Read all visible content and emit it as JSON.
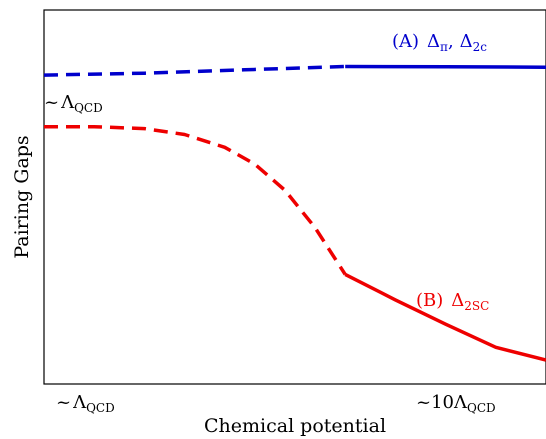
{
  "chart_data": {
    "type": "line",
    "title": "",
    "xlabel": "Chemical potential",
    "ylabel": "Pairing Gaps",
    "xlim": [
      0,
      1
    ],
    "ylim": [
      0,
      1
    ],
    "grid": false,
    "x_ticks": [
      {
        "x": 0.0,
        "prefix": "~",
        "main": "Λ",
        "sub": "QCD"
      },
      {
        "x": 1.0,
        "prefix": "~10",
        "main": "Λ",
        "sub": "QCD"
      }
    ],
    "y_annotation": {
      "y": 0.82,
      "prefix": "~",
      "main": "Λ",
      "sub": "QCD"
    },
    "series": [
      {
        "name_prefix": "(A)",
        "name_parts": [
          {
            "main": "Δ",
            "sub": "π"
          },
          {
            "main": "Δ",
            "sub": "2c"
          }
        ],
        "color": "#0000cc",
        "segments": [
          {
            "style": "dashed",
            "x": [
              0.0,
              0.2,
              0.4,
              0.6
            ],
            "y": [
              0.826,
              0.831,
              0.84,
              0.849
            ]
          },
          {
            "style": "solid",
            "x": [
              0.6,
              0.8,
              1.0
            ],
            "y": [
              0.849,
              0.848,
              0.847
            ]
          }
        ]
      },
      {
        "name_prefix": "(B)",
        "name_parts": [
          {
            "main": "Δ",
            "sub": "2SC"
          }
        ],
        "color": "#ee0000",
        "segments": [
          {
            "style": "dashed",
            "x": [
              0.0,
              0.1,
              0.2,
              0.28,
              0.36,
              0.42,
              0.48,
              0.54,
              0.6
            ],
            "y": [
              0.688,
              0.688,
              0.683,
              0.667,
              0.633,
              0.588,
              0.518,
              0.418,
              0.293
            ]
          },
          {
            "style": "solid",
            "x": [
              0.6,
              0.7,
              0.8,
              0.9,
              1.0
            ],
            "y": [
              0.293,
              0.225,
              0.16,
              0.098,
              0.064
            ]
          }
        ]
      }
    ]
  }
}
